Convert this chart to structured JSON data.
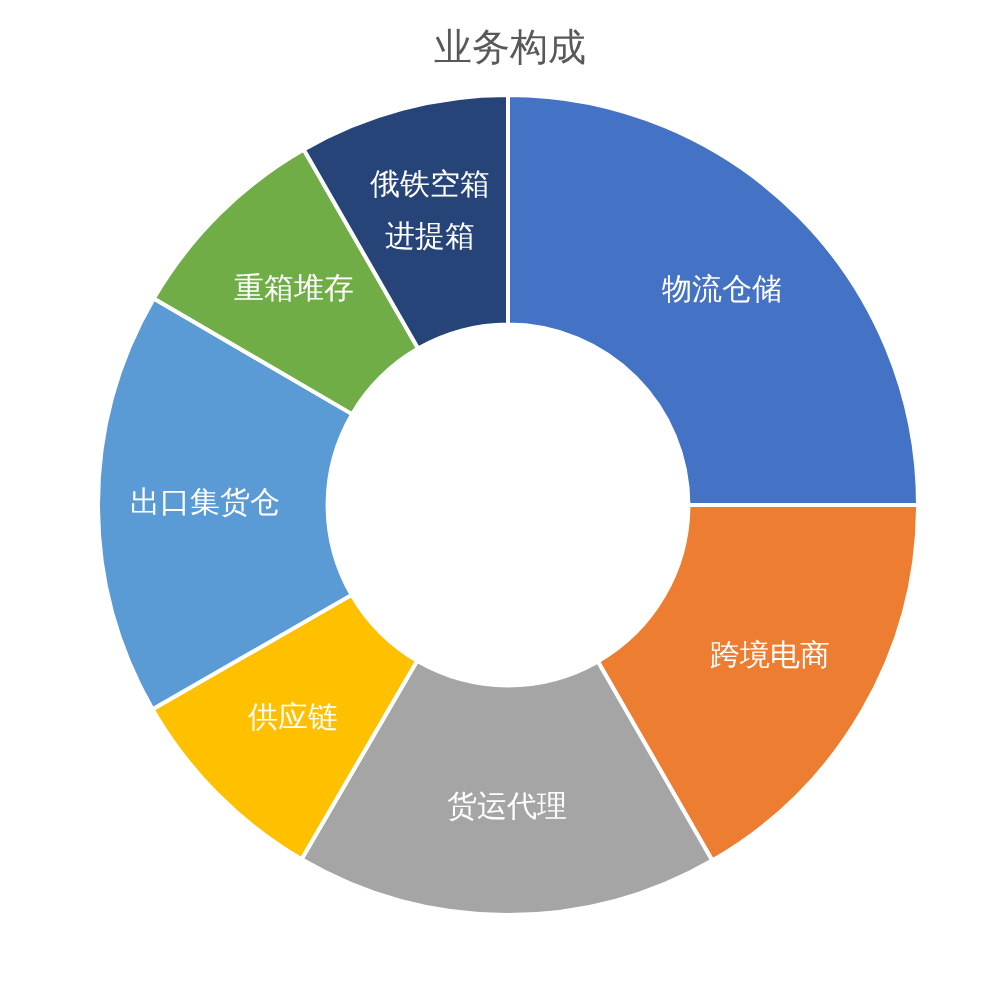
{
  "chart_data": {
    "type": "donut",
    "title": "业务构成",
    "categories": [
      "物流仓储",
      "跨境电商",
      "货运代理",
      "供应链",
      "出口集货仓",
      "重箱堆存",
      "俄铁空箱进提箱"
    ],
    "values": [
      25,
      16.7,
      16.7,
      8.3,
      16.7,
      8.3,
      8.3
    ],
    "colors": [
      "#4472c4",
      "#ed7d31",
      "#a5a5a5",
      "#ffc000",
      "#5b9bd5",
      "#70ad47",
      "#264478"
    ]
  }
}
